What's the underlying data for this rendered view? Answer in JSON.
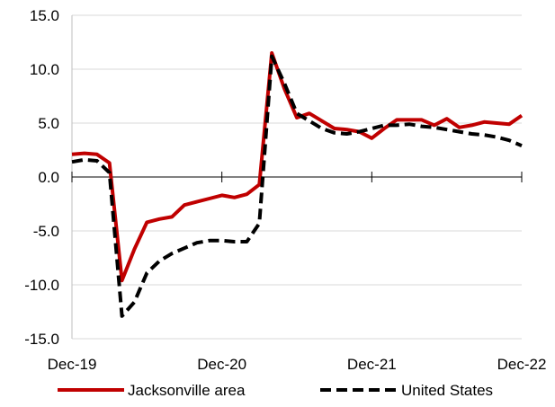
{
  "chart_data": {
    "type": "line",
    "title": "",
    "xlabel": "",
    "ylabel": "",
    "ylim": [
      -15,
      15
    ],
    "y_ticks": [
      "15.0",
      "10.0",
      "5.0",
      "0.0",
      "-5.0",
      "-10.0",
      "-15.0"
    ],
    "y_tick_values": [
      15,
      10,
      5,
      0,
      -5,
      -10,
      -15
    ],
    "x": [
      "Dec-19",
      "Jan-20",
      "Feb-20",
      "Mar-20",
      "Apr-20",
      "May-20",
      "Jun-20",
      "Jul-20",
      "Aug-20",
      "Sep-20",
      "Oct-20",
      "Nov-20",
      "Dec-20",
      "Jan-21",
      "Feb-21",
      "Mar-21",
      "Apr-21",
      "May-21",
      "Jun-21",
      "Jul-21",
      "Aug-21",
      "Sep-21",
      "Oct-21",
      "Nov-21",
      "Dec-21",
      "Jan-22",
      "Feb-22",
      "Mar-22",
      "Apr-22",
      "May-22",
      "Jun-22",
      "Jul-22",
      "Aug-22",
      "Sep-22",
      "Oct-22",
      "Nov-22",
      "Dec-22"
    ],
    "x_tick_labels": [
      "Dec-19",
      "Dec-20",
      "Dec-21",
      "Dec-22"
    ],
    "x_tick_values": [
      "Dec-19",
      "Dec-20",
      "Dec-21",
      "Dec-22"
    ],
    "grid": "horizontal",
    "legend_position": "bottom",
    "series": [
      {
        "name": "Jacksonville area",
        "color": "#C00000",
        "style": "solid",
        "values": [
          2.1,
          2.2,
          2.1,
          1.3,
          -9.6,
          -6.7,
          -4.2,
          -3.9,
          -3.7,
          -2.6,
          -2.3,
          -2.0,
          -1.7,
          -1.9,
          -1.6,
          -0.7,
          11.5,
          8.2,
          5.5,
          5.9,
          5.2,
          4.5,
          4.4,
          4.2,
          3.6,
          4.5,
          5.3,
          5.3,
          5.3,
          4.8,
          5.4,
          4.6,
          4.8,
          5.1,
          5.0,
          4.9,
          5.7
        ]
      },
      {
        "name": "United States",
        "color": "#000000",
        "style": "dashed",
        "values": [
          1.4,
          1.6,
          1.5,
          0.4,
          -12.9,
          -11.6,
          -8.9,
          -7.8,
          -7.1,
          -6.6,
          -6.1,
          -5.9,
          -5.9,
          -6.0,
          -6.0,
          -4.3,
          11.2,
          8.7,
          5.9,
          5.2,
          4.5,
          4.1,
          4.0,
          4.2,
          4.5,
          4.8,
          4.8,
          4.9,
          4.7,
          4.6,
          4.4,
          4.2,
          4.0,
          3.9,
          3.7,
          3.4,
          2.9
        ]
      }
    ]
  }
}
